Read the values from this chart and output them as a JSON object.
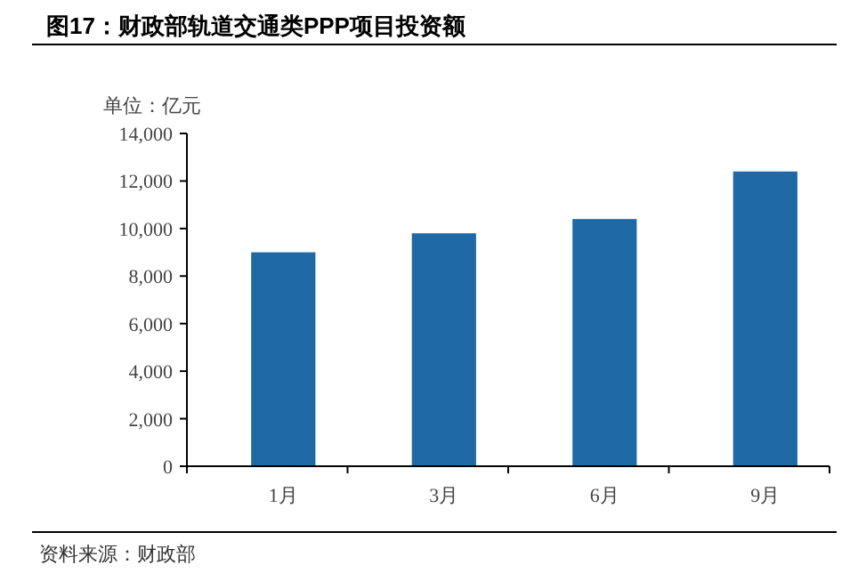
{
  "chart_data": {
    "type": "bar",
    "title": "图17：财政部轨道交通类PPP项目投资额",
    "ylabel": "单位：亿元",
    "categories": [
      "1月",
      "3月",
      "6月",
      "9月"
    ],
    "values": [
      9000,
      9800,
      10400,
      12400
    ],
    "color": "#1f6aa5",
    "ylim": [
      0,
      14000
    ],
    "yticks": [
      {
        "value": 0,
        "label": "0"
      },
      {
        "value": 2000,
        "label": "2,000"
      },
      {
        "value": 4000,
        "label": "4,000"
      },
      {
        "value": 6000,
        "label": "6,000"
      },
      {
        "value": 8000,
        "label": "8,000"
      },
      {
        "value": 10000,
        "label": "10,000"
      },
      {
        "value": 12000,
        "label": "12,000"
      },
      {
        "value": 14000,
        "label": "14,000"
      }
    ],
    "annotations": [
      "资料来源：财政部"
    ]
  }
}
